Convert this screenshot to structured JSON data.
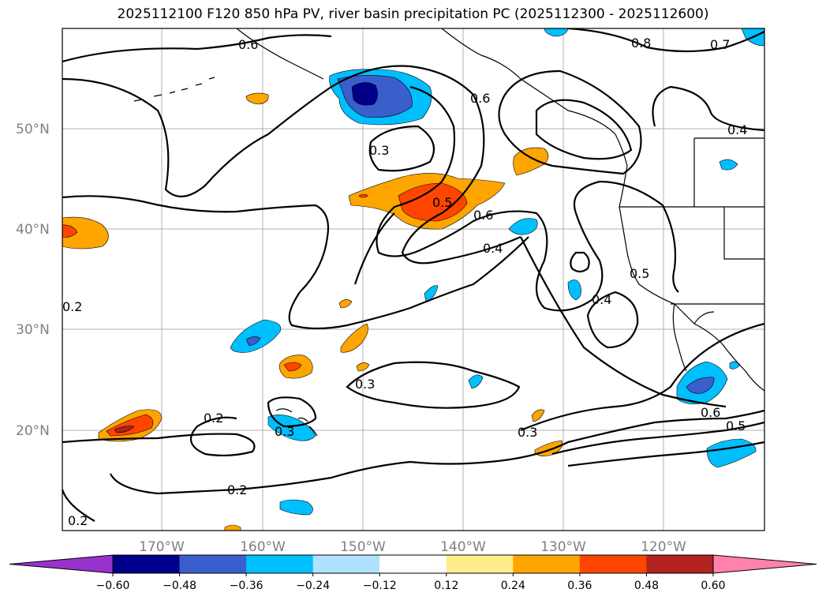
{
  "title": "2025112100 F120 850 hPa PV, river basin precipitation PC (2025112300 - 2025112600)",
  "lat_labels": [
    "50°N",
    "40°N",
    "30°N",
    "20°N"
  ],
  "lon_labels": [
    "170°W",
    "160°W",
    "150°W",
    "140°W",
    "130°W",
    "120°W"
  ],
  "contour_labels": [
    "0.6",
    "0.8",
    "0.7",
    "0.4",
    "0.6",
    "0.3",
    "0.5",
    "0.6",
    "0.4",
    "0.4",
    "0.5",
    "0.3",
    "0.3",
    "0.2",
    "0.3",
    "0.2",
    "0.6",
    "0.5",
    "0.2",
    "0.2"
  ],
  "colorbar": {
    "ticks": [
      "−0.60",
      "−0.48",
      "−0.36",
      "−0.24",
      "−0.12",
      "0.12",
      "0.24",
      "0.36",
      "0.48",
      "0.60"
    ],
    "colors": [
      "#9932CC",
      "#00008B",
      "#3A5FCD",
      "#00BFFF",
      "#B0E2FF",
      "#FFFFFF",
      "#FFEC8B",
      "#FFA500",
      "#FF4500",
      "#B22222",
      "#FF82AB"
    ]
  },
  "shading_colors": {
    "dark_blue": "#00008B",
    "blue": "#3A5FCD",
    "light_blue": "#00BFFF",
    "orange": "#FFA500",
    "red_orange": "#FF4500"
  }
}
